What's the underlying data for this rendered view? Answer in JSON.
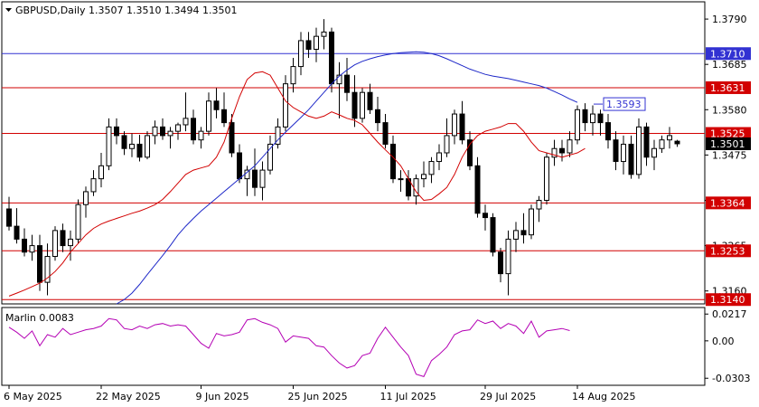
{
  "header": {
    "title": "GBPUSD,Daily  1.3507  1.3510  1.3494  1.3501"
  },
  "chart_data": [
    {
      "type": "candlestick",
      "symbol": "GBPUSD",
      "timeframe": "Daily",
      "ohlc_last": {
        "open": 1.3507,
        "high": 1.351,
        "low": 1.3494,
        "close": 1.3501
      },
      "ylim": [
        1.313,
        1.383
      ],
      "y_ticks": [
        "1.3790",
        "1.3685",
        "1.3580",
        "1.3475",
        "1.3370",
        "1.3265",
        "1.3160"
      ],
      "x_ticks": [
        "6 May 2025",
        "22 May 2025",
        "9 Jun 2025",
        "25 Jun 2025",
        "11 Jul 2025",
        "29 Jul 2025",
        "14 Aug 2025"
      ],
      "x_tick_index": [
        0,
        12,
        25,
        37,
        49,
        62,
        74
      ],
      "candles": [
        [
          1.335,
          1.3378,
          1.33,
          1.331
        ],
        [
          1.331,
          1.3352,
          1.327,
          1.328
        ],
        [
          1.328,
          1.3305,
          1.324,
          1.325
        ],
        [
          1.325,
          1.329,
          1.323,
          1.3265
        ],
        [
          1.3265,
          1.329,
          1.316,
          1.318
        ],
        [
          1.318,
          1.327,
          1.315,
          1.324
        ],
        [
          1.324,
          1.331,
          1.323,
          1.33
        ],
        [
          1.33,
          1.3316,
          1.325,
          1.3265
        ],
        [
          1.3265,
          1.33,
          1.323,
          1.328
        ],
        [
          1.328,
          1.3372,
          1.327,
          1.336
        ],
        [
          1.336,
          1.3402,
          1.333,
          1.339
        ],
        [
          1.339,
          1.344,
          1.338,
          1.342
        ],
        [
          1.342,
          1.348,
          1.34,
          1.345
        ],
        [
          1.345,
          1.356,
          1.344,
          1.354
        ],
        [
          1.354,
          1.356,
          1.35,
          1.352
        ],
        [
          1.352,
          1.353,
          1.3475,
          1.349
        ],
        [
          1.349,
          1.3525,
          1.347,
          1.35
        ],
        [
          1.35,
          1.3522,
          1.346,
          1.347
        ],
        [
          1.347,
          1.353,
          1.3465,
          1.352
        ],
        [
          1.352,
          1.3555,
          1.35,
          1.354
        ],
        [
          1.354,
          1.356,
          1.351,
          1.352
        ],
        [
          1.352,
          1.354,
          1.349,
          1.353
        ],
        [
          1.353,
          1.355,
          1.351,
          1.3545
        ],
        [
          1.3545,
          1.362,
          1.353,
          1.356
        ],
        [
          1.356,
          1.358,
          1.35,
          1.351
        ],
        [
          1.351,
          1.354,
          1.349,
          1.353
        ],
        [
          1.353,
          1.362,
          1.352,
          1.36
        ],
        [
          1.36,
          1.363,
          1.356,
          1.358
        ],
        [
          1.358,
          1.362,
          1.354,
          1.355
        ],
        [
          1.355,
          1.357,
          1.347,
          1.348
        ],
        [
          1.348,
          1.35,
          1.341,
          1.342
        ],
        [
          1.342,
          1.345,
          1.338,
          1.344
        ],
        [
          1.344,
          1.349,
          1.338,
          1.34
        ],
        [
          1.34,
          1.346,
          1.337,
          1.344
        ],
        [
          1.344,
          1.352,
          1.343,
          1.35
        ],
        [
          1.35,
          1.356,
          1.349,
          1.354
        ],
        [
          1.354,
          1.366,
          1.353,
          1.364
        ],
        [
          1.364,
          1.37,
          1.362,
          1.368
        ],
        [
          1.368,
          1.376,
          1.366,
          1.374
        ],
        [
          1.374,
          1.376,
          1.37,
          1.372
        ],
        [
          1.372,
          1.377,
          1.369,
          1.375
        ],
        [
          1.375,
          1.379,
          1.372,
          1.376
        ],
        [
          1.376,
          1.377,
          1.362,
          1.364
        ],
        [
          1.364,
          1.369,
          1.356,
          1.366
        ],
        [
          1.366,
          1.37,
          1.36,
          1.362
        ],
        [
          1.362,
          1.366,
          1.354,
          1.356
        ],
        [
          1.356,
          1.363,
          1.355,
          1.362
        ],
        [
          1.362,
          1.364,
          1.357,
          1.358
        ],
        [
          1.358,
          1.361,
          1.353,
          1.355
        ],
        [
          1.355,
          1.357,
          1.349,
          1.35
        ],
        [
          1.35,
          1.352,
          1.341,
          1.342
        ],
        [
          1.342,
          1.344,
          1.339,
          1.342
        ],
        [
          1.342,
          1.344,
          1.337,
          1.338
        ],
        [
          1.338,
          1.343,
          1.336,
          1.342
        ],
        [
          1.342,
          1.346,
          1.34,
          1.343
        ],
        [
          1.343,
          1.347,
          1.341,
          1.346
        ],
        [
          1.346,
          1.35,
          1.344,
          1.348
        ],
        [
          1.348,
          1.356,
          1.347,
          1.352
        ],
        [
          1.352,
          1.358,
          1.35,
          1.357
        ],
        [
          1.357,
          1.36,
          1.35,
          1.351
        ],
        [
          1.351,
          1.353,
          1.344,
          1.345
        ],
        [
          1.345,
          1.347,
          1.333,
          1.334
        ],
        [
          1.334,
          1.336,
          1.33,
          1.333
        ],
        [
          1.333,
          1.334,
          1.324,
          1.325
        ],
        [
          1.325,
          1.326,
          1.318,
          1.32
        ],
        [
          1.32,
          1.33,
          1.315,
          1.328
        ],
        [
          1.328,
          1.332,
          1.325,
          1.33
        ],
        [
          1.33,
          1.334,
          1.327,
          1.329
        ],
        [
          1.329,
          1.336,
          1.328,
          1.335
        ],
        [
          1.335,
          1.338,
          1.332,
          1.337
        ],
        [
          1.337,
          1.348,
          1.336,
          1.347
        ],
        [
          1.347,
          1.351,
          1.345,
          1.349
        ],
        [
          1.349,
          1.351,
          1.346,
          1.348
        ],
        [
          1.348,
          1.353,
          1.347,
          1.351
        ],
        [
          1.351,
          1.359,
          1.35,
          1.358
        ],
        [
          1.358,
          1.3595,
          1.353,
          1.355
        ],
        [
          1.355,
          1.359,
          1.352,
          1.357
        ],
        [
          1.357,
          1.358,
          1.352,
          1.355
        ],
        [
          1.355,
          1.357,
          1.349,
          1.351
        ],
        [
          1.351,
          1.353,
          1.344,
          1.346
        ],
        [
          1.346,
          1.352,
          1.343,
          1.35
        ],
        [
          1.35,
          1.352,
          1.342,
          1.343
        ],
        [
          1.343,
          1.356,
          1.342,
          1.354
        ],
        [
          1.354,
          1.355,
          1.345,
          1.347
        ],
        [
          1.347,
          1.351,
          1.344,
          1.349
        ],
        [
          1.349,
          1.352,
          1.348,
          1.351
        ],
        [
          1.351,
          1.354,
          1.349,
          1.352
        ],
        [
          1.3507,
          1.351,
          1.3494,
          1.3501
        ]
      ],
      "fast_ma": [
        1.3148,
        1.3155,
        1.3162,
        1.317,
        1.3178,
        1.319,
        1.3205,
        1.3225,
        1.325,
        1.327,
        1.329,
        1.3305,
        1.3315,
        1.3322,
        1.3328,
        1.3334,
        1.334,
        1.3345,
        1.3352,
        1.336,
        1.3372,
        1.339,
        1.341,
        1.343,
        1.344,
        1.3445,
        1.345,
        1.347,
        1.3505,
        1.356,
        1.361,
        1.365,
        1.3665,
        1.3668,
        1.366,
        1.363,
        1.36,
        1.3585,
        1.3575,
        1.3565,
        1.356,
        1.3565,
        1.3575,
        1.3568,
        1.356,
        1.3555,
        1.3545,
        1.3525,
        1.3505,
        1.3487,
        1.347,
        1.345,
        1.342,
        1.339,
        1.337,
        1.3372,
        1.3385,
        1.34,
        1.343,
        1.347,
        1.35,
        1.352,
        1.353,
        1.3535,
        1.354,
        1.3548,
        1.3548,
        1.353,
        1.3505,
        1.3485,
        1.348,
        1.3475,
        1.347,
        1.3475,
        1.348,
        1.349
      ],
      "fast_ma_start": 0,
      "slow_ma": [
        1.313,
        1.314,
        1.3155,
        1.3175,
        1.3198,
        1.322,
        1.3242,
        1.3265,
        1.329,
        1.331,
        1.3328,
        1.3345,
        1.336,
        1.3375,
        1.339,
        1.3405,
        1.342,
        1.3435,
        1.345,
        1.347,
        1.349,
        1.351,
        1.3528,
        1.3545,
        1.3562,
        1.358,
        1.36,
        1.362,
        1.364,
        1.3658,
        1.3672,
        1.3684,
        1.3692,
        1.3698,
        1.3703,
        1.3707,
        1.371,
        1.3712,
        1.3713,
        1.3714,
        1.3713,
        1.371,
        1.3705,
        1.3698,
        1.369,
        1.3682,
        1.3674,
        1.3668,
        1.3662,
        1.3658,
        1.3655,
        1.3652,
        1.3648,
        1.3644,
        1.364,
        1.3636,
        1.363,
        1.3622,
        1.3614,
        1.3605,
        1.3597
      ],
      "slow_ma_start": 14,
      "horizontal_levels": [
        {
          "label": "1.3710",
          "value": 1.371,
          "color": "#3232d2"
        },
        {
          "label": "1.3631",
          "value": 1.3631,
          "color": "#d20000"
        },
        {
          "label": "1.3525",
          "value": 1.3525,
          "color": "#d20000"
        },
        {
          "label": "1.3364",
          "value": 1.3364,
          "color": "#d20000"
        },
        {
          "label": "1.3253",
          "value": 1.3253,
          "color": "#d20000"
        },
        {
          "label": "1.3140",
          "value": 1.314,
          "color": "#d20000"
        }
      ],
      "price_label": {
        "label": "1.3501",
        "value": 1.3501
      },
      "ma_value_label": {
        "label": "1.3593",
        "value": 1.3593
      },
      "colors": {
        "candle": "#000000",
        "bull_body": "#ffffff",
        "bear_body": "#000000",
        "fast_ma": "#d20000",
        "slow_ma": "#1e28c8"
      }
    },
    {
      "type": "line",
      "name": "Marlin 0.0083",
      "ylim": [
        -0.036,
        0.027
      ],
      "y_ticks": [
        "0.0217",
        "0.00",
        "-0.0303"
      ],
      "values": [
        0.011,
        0.007,
        0.002,
        0.008,
        -0.004,
        0.005,
        0.003,
        0.01,
        0.005,
        0.007,
        0.009,
        0.01,
        0.012,
        0.018,
        0.017,
        0.01,
        0.009,
        0.012,
        0.01,
        0.013,
        0.014,
        0.012,
        0.013,
        0.012,
        0.005,
        -0.002,
        -0.006,
        0.006,
        0.004,
        0.005,
        0.007,
        0.017,
        0.018,
        0.015,
        0.013,
        0.01,
        -0.001,
        0.004,
        0.003,
        0.002,
        -0.004,
        -0.005,
        -0.012,
        -0.018,
        -0.022,
        -0.02,
        -0.012,
        -0.01,
        0.002,
        0.011,
        0.003,
        -0.005,
        -0.012,
        -0.027,
        -0.029,
        -0.016,
        -0.011,
        -0.005,
        0.005,
        0.008,
        0.009,
        0.017,
        0.014,
        0.016,
        0.01,
        0.014,
        0.012,
        0.006,
        0.016,
        0.003,
        0.008,
        0.009,
        0.01,
        0.0083
      ],
      "colors": {
        "line": "#b400b4"
      }
    }
  ]
}
